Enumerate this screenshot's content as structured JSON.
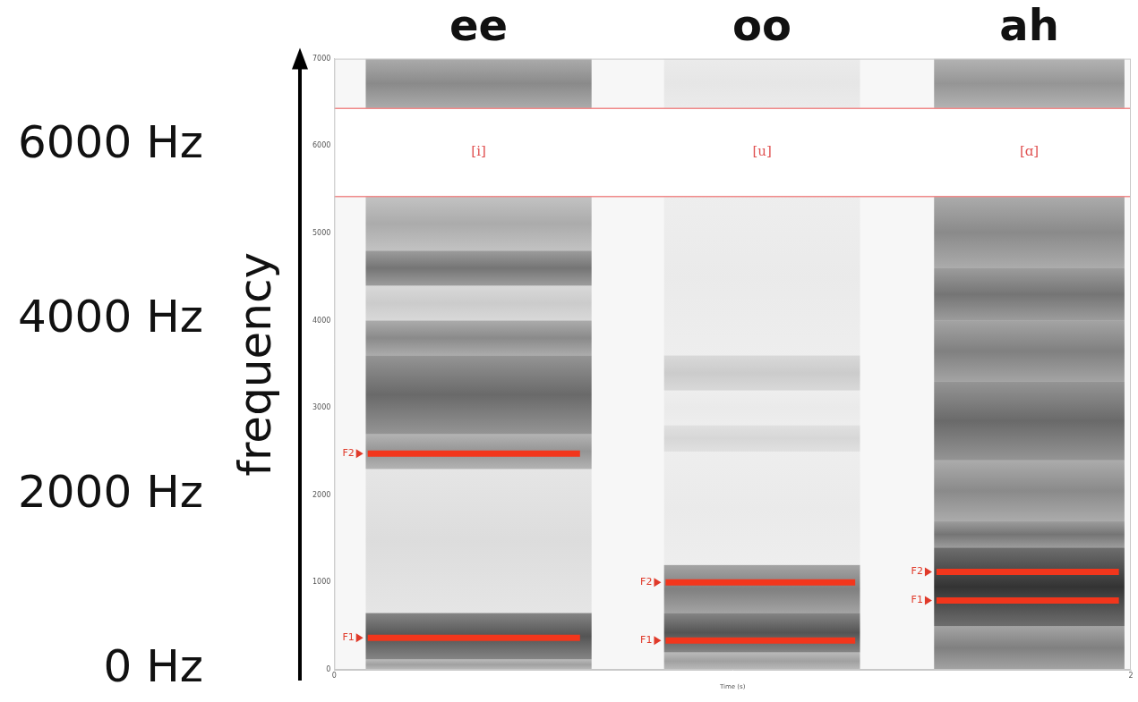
{
  "chart_data": {
    "type": "line",
    "xlabel": "Time (s)",
    "ylabel": "frequency",
    "color": "#f2361c",
    "grid": false,
    "xlim": [
      0,
      2
    ],
    "xticks": [
      0,
      2
    ],
    "ylim": [
      0,
      7000
    ],
    "yticks": [
      0,
      1000,
      2000,
      3000,
      4000,
      5000,
      6000,
      7000
    ],
    "y2lim": [
      0,
      7000
    ],
    "y2ticks": [
      {
        "value": 0,
        "label": "0 Hz"
      },
      {
        "value": 2000,
        "label": "2000 Hz"
      },
      {
        "value": 4000,
        "label": "4000 Hz"
      },
      {
        "value": 6000,
        "label": "6000 Hz"
      }
    ],
    "tier": {
      "low": 5420,
      "high": 6430
    },
    "segments": [
      {
        "label": "ee",
        "ipa": "[i]",
        "start": 0.079,
        "end": 0.646,
        "formants": [
          {
            "name": "F1",
            "value": 367,
            "start": 0.084,
            "end": 0.617
          },
          {
            "name": "F2",
            "value": 2477,
            "start": 0.084,
            "end": 0.617
          }
        ],
        "bands": [
          {
            "low": 0,
            "high": 120,
            "level": 0.4
          },
          {
            "low": 120,
            "high": 650,
            "level": 0.75
          },
          {
            "low": 650,
            "high": 2300,
            "level": 0.12
          },
          {
            "low": 2300,
            "high": 2700,
            "level": 0.45
          },
          {
            "low": 2700,
            "high": 3600,
            "level": 0.65
          },
          {
            "low": 3600,
            "high": 4000,
            "level": 0.5
          },
          {
            "low": 4000,
            "high": 4400,
            "level": 0.2
          },
          {
            "low": 4400,
            "high": 4800,
            "level": 0.6
          },
          {
            "low": 4800,
            "high": 5420,
            "level": 0.35
          },
          {
            "low": 6430,
            "high": 7000,
            "level": 0.5
          }
        ]
      },
      {
        "label": "oo",
        "ipa": "[u]",
        "start": 0.828,
        "end": 1.32,
        "formants": [
          {
            "name": "F1",
            "value": 336,
            "start": 0.832,
            "end": 1.308
          },
          {
            "name": "F2",
            "value": 1000,
            "start": 0.832,
            "end": 1.308
          }
        ],
        "bands": [
          {
            "low": 0,
            "high": 200,
            "level": 0.4
          },
          {
            "low": 200,
            "high": 650,
            "level": 0.75
          },
          {
            "low": 650,
            "high": 1200,
            "level": 0.55
          },
          {
            "low": 1200,
            "high": 2500,
            "level": 0.06
          },
          {
            "low": 2500,
            "high": 2800,
            "level": 0.15
          },
          {
            "low": 2800,
            "high": 3200,
            "level": 0.06
          },
          {
            "low": 3200,
            "high": 3600,
            "level": 0.2
          },
          {
            "low": 3600,
            "high": 5420,
            "level": 0.06
          },
          {
            "low": 6430,
            "high": 7000,
            "level": 0.08
          }
        ]
      },
      {
        "label": "ah",
        "ipa": "[ɑ]",
        "start": 1.506,
        "end": 1.984,
        "formants": [
          {
            "name": "F1",
            "value": 795,
            "start": 1.512,
            "end": 1.97
          },
          {
            "name": "F2",
            "value": 1121,
            "start": 1.512,
            "end": 1.97
          }
        ],
        "bands": [
          {
            "low": 0,
            "high": 500,
            "level": 0.55
          },
          {
            "low": 500,
            "high": 1400,
            "level": 0.9
          },
          {
            "low": 1400,
            "high": 1700,
            "level": 0.6
          },
          {
            "low": 1700,
            "high": 2400,
            "level": 0.5
          },
          {
            "low": 2400,
            "high": 3300,
            "level": 0.65
          },
          {
            "low": 3300,
            "high": 4000,
            "level": 0.55
          },
          {
            "low": 4000,
            "high": 4600,
            "level": 0.6
          },
          {
            "low": 4600,
            "high": 5420,
            "level": 0.5
          },
          {
            "low": 6430,
            "high": 7000,
            "level": 0.45
          }
        ]
      }
    ]
  }
}
